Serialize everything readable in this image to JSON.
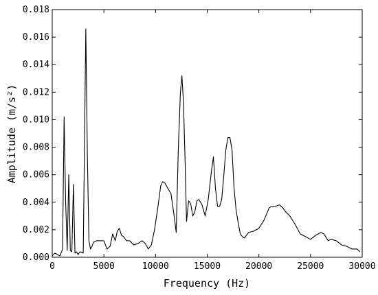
{
  "chart_data": {
    "type": "line",
    "title": "",
    "xlabel": "Frequency (Hz)",
    "ylabel": "Amplitude (m/s²)",
    "xlim": [
      0,
      30000
    ],
    "ylim": [
      0,
      0.018
    ],
    "grid": false,
    "legend": "none",
    "x_ticks": [
      0,
      5000,
      10000,
      15000,
      20000,
      25000,
      30000
    ],
    "x_tick_labels": [
      "0",
      "5000",
      "10000",
      "15000",
      "20000",
      "25000",
      "30000"
    ],
    "y_ticks": [
      0,
      0.002,
      0.004,
      0.006,
      0.008,
      0.01,
      0.012,
      0.014,
      0.016,
      0.018
    ],
    "y_tick_labels": [
      "0.000",
      "0.002",
      "0.004",
      "0.006",
      "0.008",
      "0.010",
      "0.012",
      "0.014",
      "0.016",
      "0.018"
    ],
    "line_color": "#000000",
    "series": [
      {
        "x": [
          0,
          250,
          500,
          750,
          1000,
          1150,
          1300,
          1450,
          1600,
          1750,
          1900,
          2050,
          2200,
          2350,
          2500,
          2700,
          3000,
          3250,
          3400,
          3550,
          3700,
          3850,
          4000,
          4300,
          4600,
          5000,
          5300,
          5600,
          5850,
          6100,
          6300,
          6500,
          6700,
          6900,
          7200,
          7500,
          7900,
          8300,
          8700,
          9000,
          9300,
          9600,
          9900,
          10200,
          10500,
          10700,
          10900,
          11200,
          11500,
          11800,
          12000,
          12200,
          12400,
          12550,
          12700,
          12850,
          13000,
          13200,
          13400,
          13600,
          13800,
          14000,
          14200,
          14500,
          14800,
          15100,
          15400,
          15600,
          15800,
          16000,
          16200,
          16400,
          16600,
          16800,
          17000,
          17200,
          17400,
          17600,
          17800,
          18000,
          18200,
          18400,
          18600,
          18800,
          19000,
          19500,
          20000,
          20500,
          21000,
          21300,
          21600,
          22000,
          22300,
          22600,
          23000,
          23500,
          24000,
          24500,
          25000,
          25500,
          26000,
          26300,
          26700,
          27000,
          27500,
          28000,
          28500,
          29000,
          29500,
          29800
        ],
        "y": [
          0.0001,
          0.0003,
          0.0002,
          0.0001,
          0.0006,
          0.0102,
          0.004,
          0.0005,
          0.006,
          0.0005,
          0.0004,
          0.0053,
          0.0003,
          0.0004,
          0.0002,
          0.0004,
          0.0003,
          0.0166,
          0.0075,
          0.0012,
          0.0006,
          0.0008,
          0.0011,
          0.0012,
          0.0012,
          0.0012,
          0.0006,
          0.0008,
          0.0017,
          0.0012,
          0.0019,
          0.0021,
          0.0016,
          0.0015,
          0.0012,
          0.0012,
          0.0009,
          0.001,
          0.0012,
          0.001,
          0.0006,
          0.0009,
          0.002,
          0.0035,
          0.0052,
          0.0055,
          0.0054,
          0.005,
          0.0046,
          0.003,
          0.0018,
          0.0078,
          0.0119,
          0.0132,
          0.0113,
          0.0072,
          0.0026,
          0.0041,
          0.0039,
          0.003,
          0.0033,
          0.0041,
          0.0042,
          0.0038,
          0.003,
          0.0042,
          0.0062,
          0.0073,
          0.005,
          0.0037,
          0.0037,
          0.0042,
          0.0059,
          0.0078,
          0.0087,
          0.0087,
          0.0078,
          0.005,
          0.0034,
          0.0025,
          0.0017,
          0.0015,
          0.0014,
          0.0016,
          0.0018,
          0.0019,
          0.0021,
          0.0027,
          0.0036,
          0.0037,
          0.0037,
          0.0038,
          0.0036,
          0.0033,
          0.003,
          0.0024,
          0.0017,
          0.0015,
          0.0013,
          0.0016,
          0.0018,
          0.0017,
          0.0012,
          0.0013,
          0.0012,
          0.0009,
          0.0008,
          0.0006,
          0.0006,
          0.0004
        ]
      }
    ]
  }
}
